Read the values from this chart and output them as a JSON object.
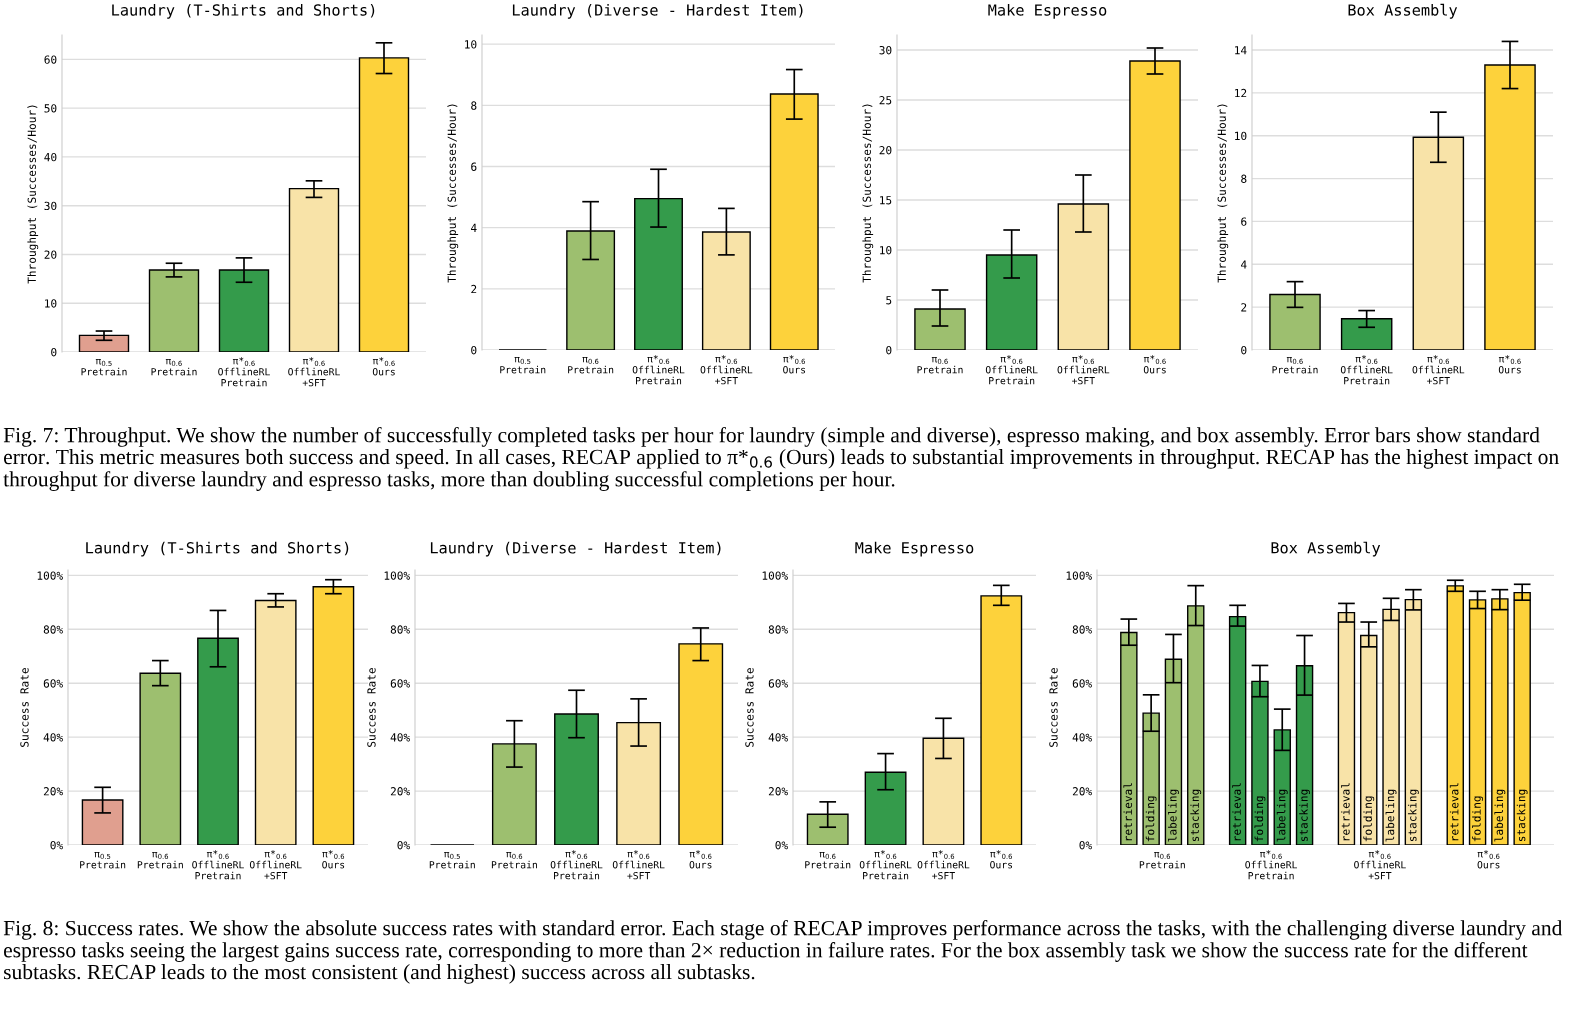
{
  "chart_data": [
    {
      "type": "bar",
      "title": "Laundry (T-Shirts and Shorts)",
      "ylabel": "Throughput (Successes/Hour)",
      "categories": [
        "π$_{0.5}$\nPretrain",
        "π$_{0.6}$\nPretrain",
        "π*$_{0.6}$\nOfflineRL\nPretrain",
        "π*$_{0.6}$\nOfflineRL\n+SFT",
        "π*$_{0.6}$\nOurs"
      ],
      "values": [
        3.4,
        16.8,
        16.8,
        33.5,
        60.3
      ],
      "errors": [
        [
          2.4,
          4.3
        ],
        [
          15.4,
          18.2
        ],
        [
          14.3,
          19.3
        ],
        [
          31.7,
          35.1
        ],
        [
          57.1,
          63.4
        ]
      ],
      "colors": [
        "#e09f8f",
        "#9dbf6f",
        "#349b4b",
        "#f8e3a8",
        "#fdd23b"
      ],
      "ylim": [
        0,
        65
      ],
      "yticks": [
        0,
        10,
        20,
        30,
        40,
        50,
        60
      ],
      "grid": "y",
      "annotations": [
        "Fig. 7: Throughput. We show the number of successfully completed tasks per hour for laundry (simple and diverse), espresso making, and box assembly. Error bars show standard error. This metric measures both success and speed. In all cases, RECAP applied to π*$_{0.6}$ (Ours) leads to substantial improvements in throughput. RECAP has the highest impact on throughput for diverse laundry and espresso tasks, more than doubling successful completions per hour."
      ]
    },
    {
      "type": "bar",
      "title": "Laundry (Diverse - Hardest Item)",
      "ylabel": "Throughput (Successes/Hour)",
      "categories": [
        "π$_{0.5}$\nPretrain",
        "π$_{0.6}$\nPretrain",
        "π*$_{0.6}$\nOfflineRL\nPretrain",
        "π*$_{0.6}$\nOfflineRL\n+SFT",
        "π*$_{0.6}$\nOurs"
      ],
      "values": [
        0,
        3.89,
        4.95,
        3.86,
        8.37
      ],
      "errors": [
        null,
        [
          2.96,
          4.85
        ],
        [
          4.02,
          5.91
        ],
        [
          3.11,
          4.63
        ],
        [
          7.55,
          9.17
        ]
      ],
      "colors": [
        "#000000",
        "#9dbf6f",
        "#349b4b",
        "#f8e3a8",
        "#fdd23b"
      ],
      "ylim": [
        0,
        10.3
      ],
      "yticks": [
        0,
        2,
        4,
        6,
        8,
        10
      ],
      "grid": "y"
    },
    {
      "type": "bar",
      "title": "Make Espresso",
      "ylabel": "Throughput (Successes/Hour)",
      "categories": [
        "π$_{0.6}$\nPretrain",
        "π*$_{0.6}$\nOfflineRL\nPretrain",
        "π*$_{0.6}$\nOfflineRL\n+SFT",
        "π*$_{0.6}$\nOurs"
      ],
      "values": [
        4.1,
        9.5,
        14.6,
        28.9
      ],
      "errors": [
        [
          2.4,
          6.0
        ],
        [
          7.2,
          12.0
        ],
        [
          11.8,
          17.5
        ],
        [
          27.6,
          30.2
        ]
      ],
      "colors": [
        "#9dbf6f",
        "#349b4b",
        "#f8e3a8",
        "#fdd23b"
      ],
      "ylim": [
        0,
        31.5
      ],
      "yticks": [
        0,
        5,
        10,
        15,
        20,
        25,
        30
      ],
      "grid": "y"
    },
    {
      "type": "bar",
      "title": "Box Assembly",
      "ylabel": "Throughput (Successes/Hour)",
      "categories": [
        "π$_{0.6}$\nPretrain",
        "π*$_{0.6}$\nOfflineRL\nPretrain",
        "π*$_{0.6}$\nOfflineRL\n+SFT",
        "π*$_{0.6}$\nOurs"
      ],
      "values": [
        2.59,
        1.46,
        9.93,
        13.3
      ],
      "errors": [
        [
          1.99,
          3.19
        ],
        [
          1.06,
          1.84
        ],
        [
          8.76,
          11.1
        ],
        [
          12.2,
          14.4
        ]
      ],
      "colors": [
        "#9dbf6f",
        "#349b4b",
        "#f8e3a8",
        "#fdd23b"
      ],
      "ylim": [
        0,
        14.7
      ],
      "yticks": [
        0,
        2,
        4,
        6,
        8,
        10,
        12,
        14
      ],
      "grid": "y"
    },
    {
      "type": "bar",
      "title": "Laundry (T-Shirts and Shorts)",
      "ylabel": "Success Rate",
      "categories": [
        "π$_{0.5}$\nPretrain",
        "π$_{0.6}$\nPretrain",
        "π*$_{0.6}$\nOfflineRL\nPretrain",
        "π*$_{0.6}$\nOfflineRL\n+SFT",
        "π*$_{0.6}$\nOurs"
      ],
      "values": [
        16.7,
        63.7,
        76.7,
        90.7,
        95.8
      ],
      "errors": [
        [
          11.9,
          21.4
        ],
        [
          59.1,
          68.4
        ],
        [
          66.1,
          87.0
        ],
        [
          88.3,
          93.2
        ],
        [
          93.2,
          98.4
        ]
      ],
      "colors": [
        "#e09f8f",
        "#9dbf6f",
        "#349b4b",
        "#f8e3a8",
        "#fdd23b"
      ],
      "ylim": [
        0,
        102
      ],
      "yticks": [
        {
          "value": 0,
          "label": "0%"
        },
        {
          "value": 20,
          "label": "20%"
        },
        {
          "value": 40,
          "label": "40%"
        },
        {
          "value": 60,
          "label": "60%"
        },
        {
          "value": 80,
          "label": "80%"
        },
        {
          "value": 100,
          "label": "100%"
        }
      ],
      "grid": "y",
      "annotations": [
        "Fig. 8: Success rates. We show the absolute success rates with standard error. Each stage of RECAP improves performance across the tasks, with the challenging diverse laundry and espresso tasks seeing the largest gains success rate, corresponding to more than 2× reduction in failure rates. For the box assembly task we show the success rate for the different subtasks. RECAP leads to the most consistent (and highest) success across all subtasks."
      ]
    },
    {
      "type": "bar",
      "title": "Laundry (Diverse - Hardest Item)",
      "ylabel": "Success Rate",
      "categories": [
        "π$_{0.5}$\nPretrain",
        "π$_{0.6}$\nPretrain",
        "π*$_{0.6}$\nOfflineRL\nPretrain",
        "π*$_{0.6}$\nOfflineRL\n+SFT",
        "π*$_{0.6}$\nOurs"
      ],
      "values": [
        0,
        37.5,
        48.6,
        45.4,
        74.6
      ],
      "errors": [
        null,
        [
          28.9,
          46.1
        ],
        [
          39.8,
          57.4
        ],
        [
          36.7,
          54.2
        ],
        [
          68.4,
          80.5
        ]
      ],
      "colors": [
        "#000000",
        "#9dbf6f",
        "#349b4b",
        "#f8e3a8",
        "#fdd23b"
      ],
      "ylim": [
        0,
        102
      ],
      "yticks": [
        {
          "value": 0,
          "label": "0%"
        },
        {
          "value": 20,
          "label": "20%"
        },
        {
          "value": 40,
          "label": "40%"
        },
        {
          "value": 60,
          "label": "60%"
        },
        {
          "value": 80,
          "label": "80%"
        },
        {
          "value": 100,
          "label": "100%"
        }
      ],
      "grid": "y"
    },
    {
      "type": "bar",
      "title": "Make Espresso",
      "ylabel": "Success Rate",
      "categories": [
        "π$_{0.6}$\nPretrain",
        "π*$_{0.6}$\nOfflineRL\nPretrain",
        "π*$_{0.6}$\nOfflineRL\n+SFT",
        "π*$_{0.6}$\nOurs"
      ],
      "values": [
        11.4,
        27.0,
        39.6,
        92.4
      ],
      "errors": [
        [
          6.6,
          16.0
        ],
        [
          20.5,
          33.9
        ],
        [
          32.1,
          47.0
        ],
        [
          88.9,
          96.3
        ]
      ],
      "colors": [
        "#9dbf6f",
        "#349b4b",
        "#f8e3a8",
        "#fdd23b"
      ],
      "ylim": [
        0,
        102
      ],
      "yticks": [
        {
          "value": 0,
          "label": "0%"
        },
        {
          "value": 20,
          "label": "20%"
        },
        {
          "value": 40,
          "label": "40%"
        },
        {
          "value": 60,
          "label": "60%"
        },
        {
          "value": 80,
          "label": "80%"
        },
        {
          "value": 100,
          "label": "100%"
        }
      ],
      "grid": "y"
    },
    {
      "type": "bar",
      "title": "Box Assembly",
      "ylabel": "Success Rate",
      "categories": [
        "π$_{0.6}$\nPretrain",
        "π*$_{0.6}$\nOfflineRL\nPretrain",
        "π*$_{0.6}$\nOfflineRL\n+SFT",
        "π*$_{0.6}$\nOurs"
      ],
      "series": [
        {
          "name": "retrieval",
          "colors": [
            "#9dbf6f",
            "#349b4b",
            "#f8e3a8",
            "#fdd23b"
          ],
          "values": [
            78.8,
            84.7,
            86.2,
            96.1
          ],
          "errors": [
            [
              74.1,
              83.8
            ],
            [
              81.2,
              88.9
            ],
            [
              82.7,
              89.6
            ],
            [
              94.1,
              98.2
            ]
          ]
        },
        {
          "name": "folding",
          "colors": [
            "#9dbf6f",
            "#349b4b",
            "#f8e3a8",
            "#fdd23b"
          ],
          "values": [
            48.9,
            60.7,
            77.7,
            90.9
          ],
          "errors": [
            [
              42.2,
              55.7
            ],
            [
              55.0,
              66.6
            ],
            [
              73.5,
              82.7
            ],
            [
              87.7,
              94.1
            ]
          ]
        },
        {
          "name": "labeling",
          "colors": [
            "#9dbf6f",
            "#349b4b",
            "#f8e3a8",
            "#fdd23b"
          ],
          "values": [
            68.9,
            42.7,
            87.4,
            91.3
          ],
          "errors": [
            [
              60.2,
              78.1
            ],
            [
              35.1,
              50.4
            ],
            [
              83.3,
              91.5
            ],
            [
              87.3,
              94.7
            ]
          ]
        },
        {
          "name": "stacking",
          "colors": [
            "#9dbf6f",
            "#349b4b",
            "#f8e3a8",
            "#fdd23b"
          ],
          "values": [
            88.7,
            66.5,
            91.0,
            93.6
          ],
          "errors": [
            [
              81.4,
              96.2
            ],
            [
              55.6,
              77.7
            ],
            [
              87.2,
              94.7
            ],
            [
              90.8,
              96.7
            ]
          ]
        }
      ],
      "ylim": [
        0,
        102
      ],
      "yticks": [
        {
          "value": 0,
          "label": "0%"
        },
        {
          "value": 20,
          "label": "20%"
        },
        {
          "value": 40,
          "label": "40%"
        },
        {
          "value": 60,
          "label": "60%"
        },
        {
          "value": 80,
          "label": "80%"
        },
        {
          "value": 100,
          "label": "100%"
        }
      ],
      "grid": "y"
    }
  ]
}
